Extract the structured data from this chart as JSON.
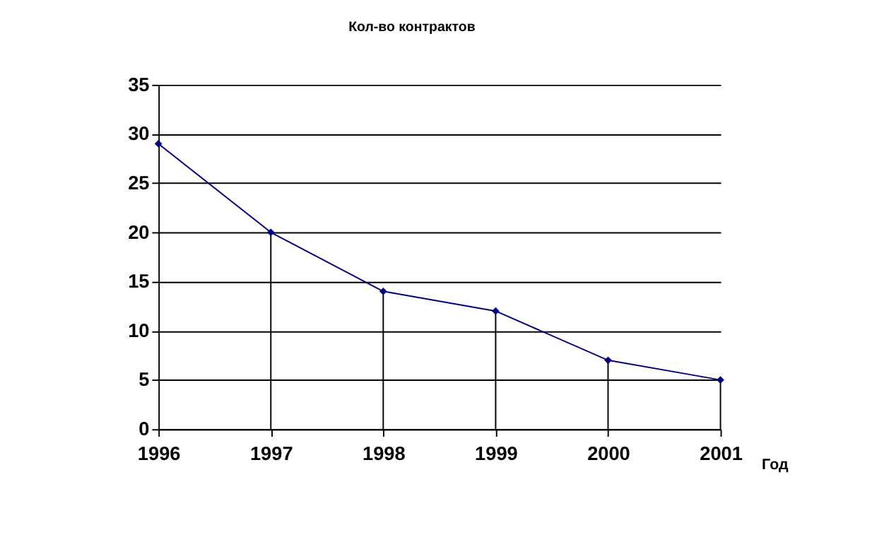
{
  "chart_data": {
    "type": "line",
    "title": "Кол-во контрактов",
    "xlabel": "Год",
    "categories": [
      "1996",
      "1997",
      "1998",
      "1999",
      "2000",
      "2001"
    ],
    "series": [
      {
        "color": "#000080",
        "values": [
          29,
          20,
          14,
          12,
          7,
          5
        ],
        "errors": [
          null,
          [
            0,
            20
          ],
          [
            0,
            14
          ],
          [
            0,
            12
          ],
          [
            0,
            7
          ],
          [
            0,
            5
          ]
        ]
      }
    ],
    "ylim": [
      0,
      35
    ],
    "yticks": [
      0,
      5,
      10,
      15,
      20,
      25,
      30,
      35
    ],
    "grid": "y",
    "marker": "diamond",
    "line_style": "solid"
  }
}
